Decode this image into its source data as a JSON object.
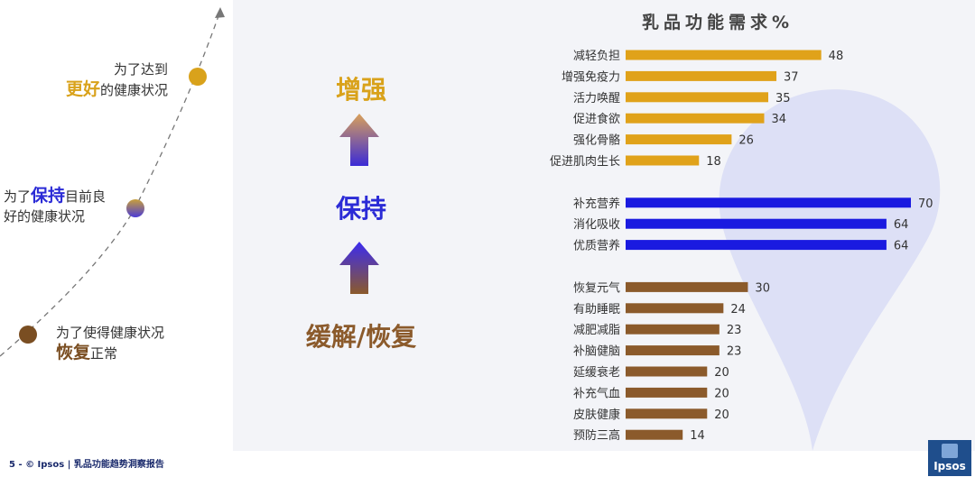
{
  "stages": {
    "top": {
      "line1": "为了达到",
      "emph": "更好",
      "rest": "的健康状况",
      "color": "#d9a21b"
    },
    "mid": {
      "pre": "为了",
      "emph": "保持",
      "rest1": "目前良",
      "line2": "好的健康状况",
      "color": "#2b2bd6"
    },
    "bottom": {
      "line1": "为了使得健康状况",
      "emph": "恢复",
      "rest": "正常",
      "color": "#7a4e22"
    }
  },
  "middle": {
    "enhance": "增强",
    "maintain": "保持",
    "relieve": "缓解/恢复",
    "colors": {
      "enhance": "#d9a21b",
      "maintain": "#2b2bd6",
      "relieve": "#8b5a2b"
    }
  },
  "chart_data": {
    "type": "bar",
    "title": "乳品功能需求%",
    "orientation": "horizontal",
    "groups": [
      {
        "color": "#e0a21a",
        "categories": [
          "减轻负担",
          "增强免疫力",
          "活力唤醒",
          "促进食欲",
          "强化骨骼",
          "促进肌肉生长"
        ],
        "values": [
          48,
          37,
          35,
          34,
          26,
          18
        ]
      },
      {
        "color": "#1a1ae0",
        "categories": [
          "补充营养",
          "消化吸收",
          "优质营养"
        ],
        "values": [
          70,
          64,
          64
        ]
      },
      {
        "color": "#8b5a2b",
        "categories": [
          "恢复元气",
          "有助睡眠",
          "减肥减脂",
          "补脑健脑",
          "延缓衰老",
          "补充气血",
          "皮肤健康",
          "预防三高"
        ],
        "values": [
          30,
          24,
          23,
          23,
          20,
          20,
          20,
          14
        ]
      }
    ]
  },
  "footer": {
    "text": "5 - © Ipsos | 乳品功能趋势洞察报告"
  },
  "logo": {
    "text": "Ipsos"
  }
}
